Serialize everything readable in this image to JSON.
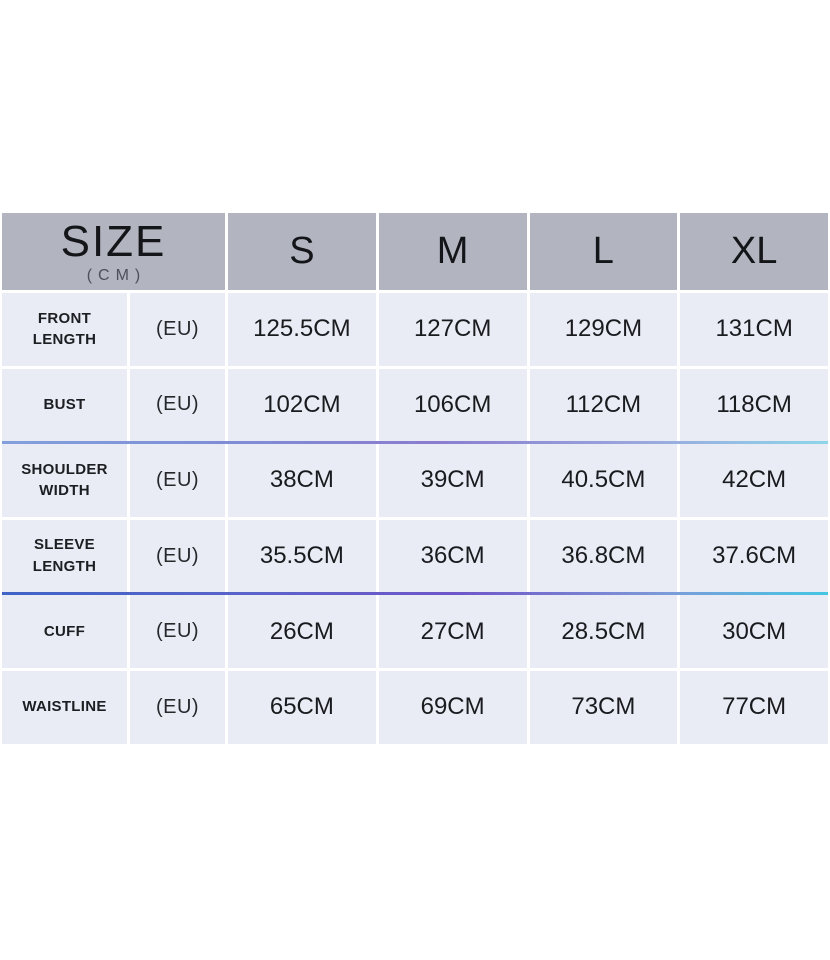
{
  "chart_data": {
    "type": "table",
    "title": "SIZE",
    "unit": "(CM)",
    "columns": [
      "S",
      "M",
      "L",
      "XL"
    ],
    "rows": [
      {
        "label": "FRONT LENGTH",
        "region": "(EU)",
        "values": [
          "125.5CM",
          "127CM",
          "129CM",
          "131CM"
        ]
      },
      {
        "label": "BUST",
        "region": "(EU)",
        "values": [
          "102CM",
          "106CM",
          "112CM",
          "118CM"
        ]
      },
      {
        "label": "SHOULDER WIDTH",
        "region": "(EU)",
        "values": [
          "38CM",
          "39CM",
          "40.5CM",
          "42CM"
        ]
      },
      {
        "label": "SLEEVE LENGTH",
        "region": "(EU)",
        "values": [
          "35.5CM",
          "36CM",
          "36.8CM",
          "37.6CM"
        ]
      },
      {
        "label": "CUFF",
        "region": "(EU)",
        "values": [
          "26CM",
          "27CM",
          "28.5CM",
          "30CM"
        ]
      },
      {
        "label": "WAISTLINE",
        "region": "(EU)",
        "values": [
          "65CM",
          "69CM",
          "73CM",
          "77CM"
        ]
      }
    ],
    "numeric_values_cm": {
      "FRONT LENGTH": [
        125.5,
        127,
        129,
        131
      ],
      "BUST": [
        102,
        106,
        112,
        118
      ],
      "SHOULDER WIDTH": [
        38,
        39,
        40.5,
        42
      ],
      "SLEEVE LENGTH": [
        35.5,
        36,
        36.8,
        37.6
      ],
      "CUFF": [
        26,
        27,
        28.5,
        30
      ],
      "WAISTLINE": [
        65,
        69,
        73,
        77
      ]
    }
  },
  "colors": {
    "header_bg": "#b2b5c0",
    "body_bg": "#e9ecf4",
    "divider": "#ffffff",
    "text": "#1a1b1f",
    "unit_text": "#4d5058",
    "accent_line_1": [
      "#83a0dc",
      "#8a7ccf",
      "#8dd6e9"
    ],
    "accent_line_2": [
      "#3f63c6",
      "#6e56c8",
      "#45c6e2"
    ]
  }
}
